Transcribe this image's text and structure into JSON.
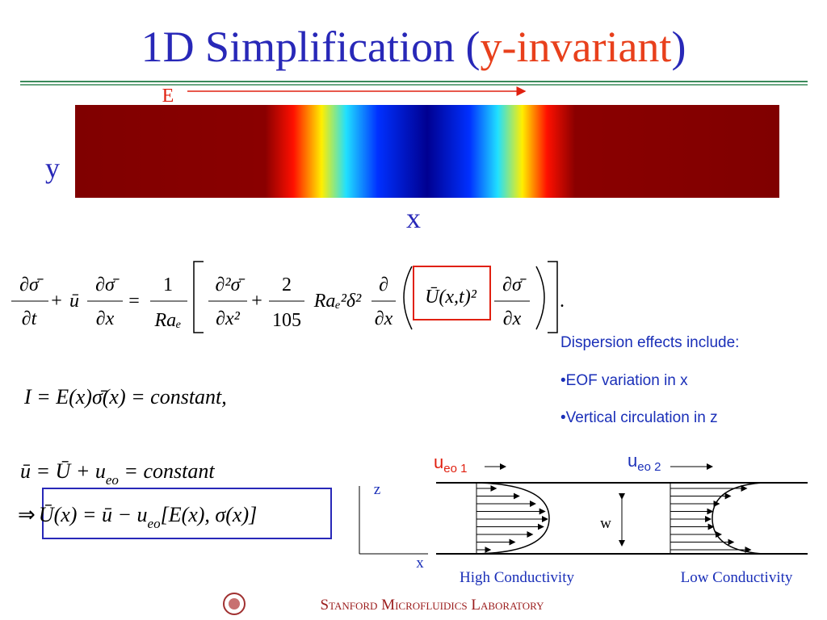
{
  "title": {
    "parts": [
      "1D Simplification (",
      "y-invariant",
      ")"
    ]
  },
  "figure": {
    "field": "E",
    "y_axis": "y",
    "x_axis": "x"
  },
  "equations": {
    "advection_dispersion": [
      "∂σ̄",
      "∂t",
      "+",
      "ū",
      "∂σ̄",
      "∂x",
      "=",
      "1",
      "Raₑ",
      "∂²σ̄",
      "∂x²",
      "+",
      "2",
      "105",
      "Raₑ²δ²",
      "∂",
      "∂x",
      "Ū(x,t)²",
      "∂σ̄",
      "∂x",
      "."
    ],
    "current": "I = E(x)σ̄(x) = constant,",
    "velocity": [
      "ū = Ū + u",
      "eo",
      " = constant"
    ],
    "implication": [
      "⇒",
      "Ū(x) = ū − u",
      "eo",
      "[E(x), σ(x)]"
    ]
  },
  "notes": [
    "Dispersion effects include:",
    "•EOF variation in x",
    "•Vertical circulation in z"
  ],
  "diagram": {
    "u_left": "u",
    "u_left_sub": "eo 1",
    "u_right": "u",
    "u_right_sub": "eo 2",
    "z_axis": "z",
    "x_axis": "x",
    "width": "w",
    "left_label": "High Conductivity",
    "right_label": "Low Conductivity"
  },
  "footer": "Stanford Microfluidics Laboratory"
}
